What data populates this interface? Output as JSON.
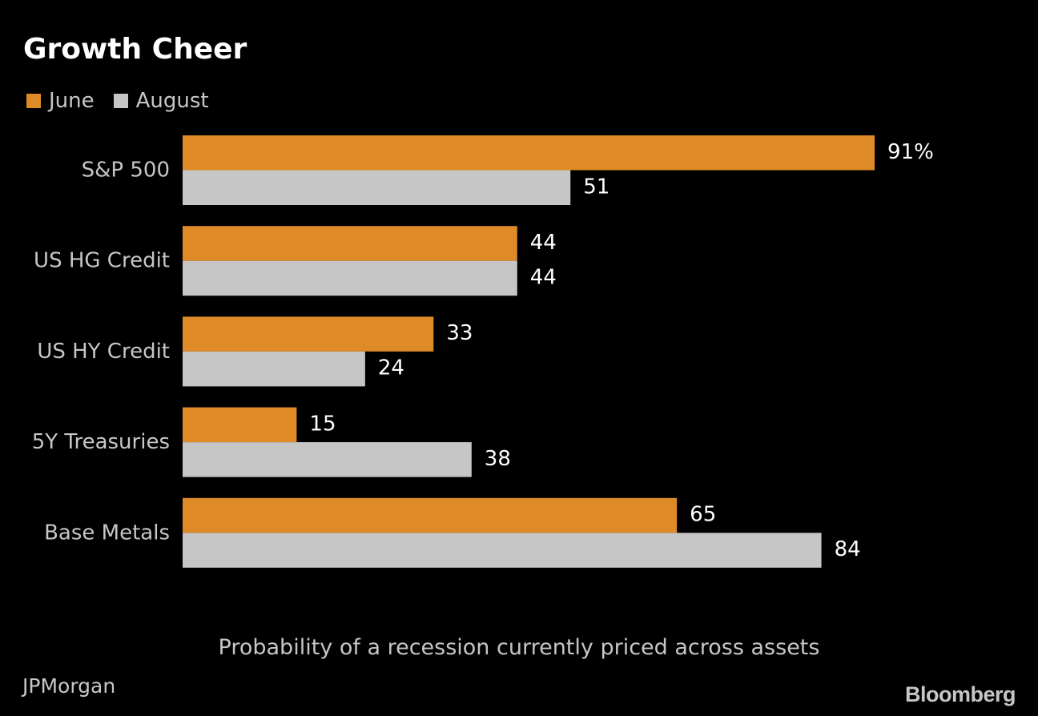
{
  "header": {
    "title": "Growth Cheer"
  },
  "footer": {
    "source": "JPMorgan",
    "brand": "Bloomberg"
  },
  "colors": {
    "background": "#000000",
    "june": "#de8a26",
    "august": "#c6c6c6",
    "text": "#ffffff",
    "muted_text": "#c6c6c6"
  },
  "chart_data": {
    "type": "bar",
    "orientation": "horizontal",
    "title": "Growth Cheer",
    "xlabel": "Probability of a recession currently priced across assets",
    "ylabel": "",
    "categories": [
      "S&P 500",
      "US HG Credit",
      "US HY Credit",
      "5Y Treasuries",
      "Base Metals"
    ],
    "series": [
      {
        "name": "June",
        "values": [
          91,
          44,
          33,
          15,
          65
        ],
        "color": "#de8a26"
      },
      {
        "name": "August",
        "values": [
          51,
          44,
          24,
          38,
          84
        ],
        "color": "#c6c6c6"
      }
    ],
    "value_labels": [
      [
        "91%",
        "44",
        "33",
        "15",
        "65"
      ],
      [
        "51",
        "44",
        "24",
        "38",
        "84"
      ]
    ],
    "xlim": [
      0,
      100
    ],
    "grid": false,
    "legend_position": "top-left"
  }
}
